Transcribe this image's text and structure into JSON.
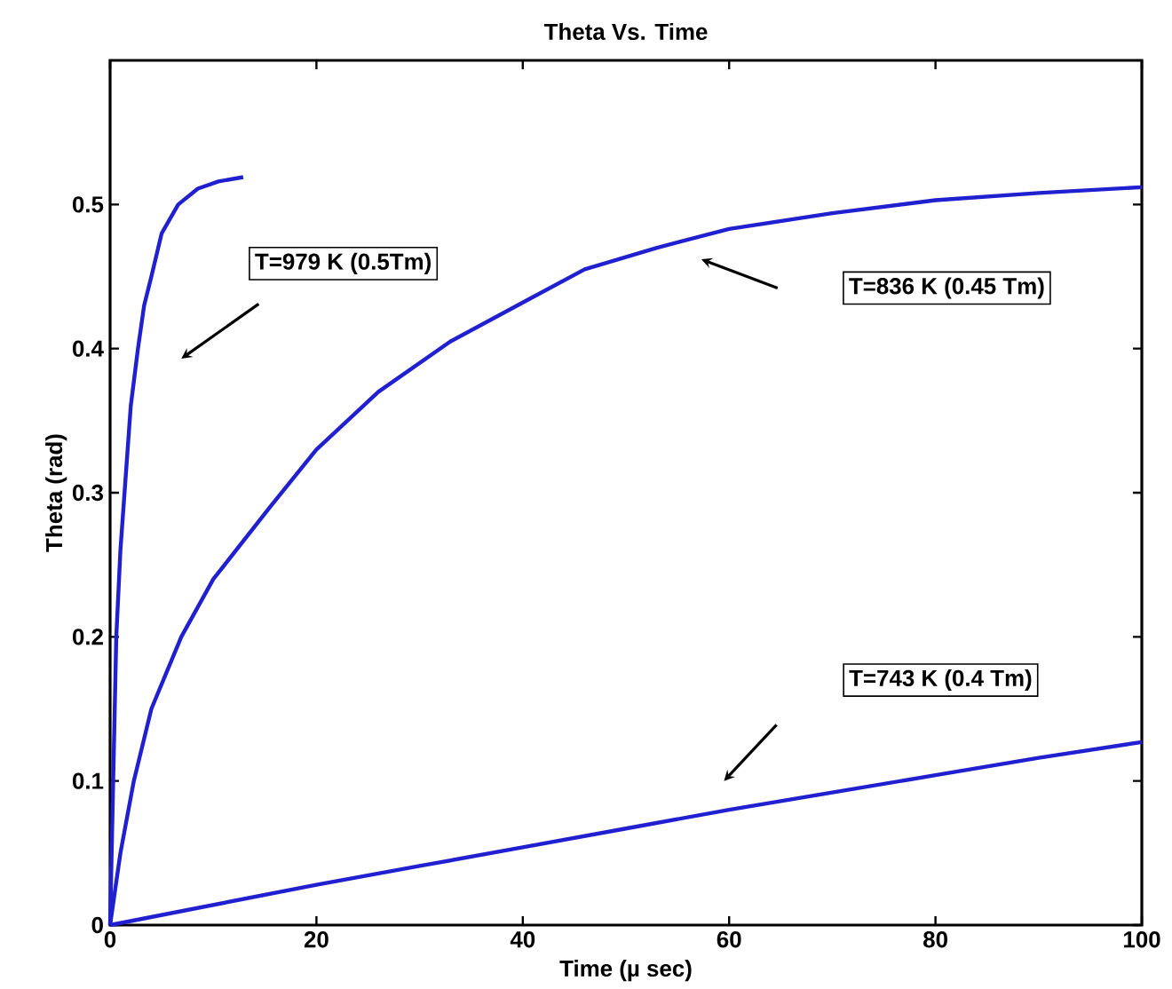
{
  "chart_data": {
    "type": "line",
    "title": "Theta Vs. Time",
    "xlabel": "Time (µ sec)",
    "ylabel": "Theta (rad)",
    "xlim": [
      0,
      100
    ],
    "ylim": [
      0,
      0.6
    ],
    "xticks": [
      0,
      20,
      40,
      60,
      80,
      100
    ],
    "yticks": [
      0,
      0.1,
      0.2,
      0.3,
      0.4,
      0.5
    ],
    "series": [
      {
        "color": "#2020d0",
        "x": [
          0,
          0.3,
          0.6,
          1.0,
          1.4,
          2.0,
          2.7,
          3.3,
          4.0,
          5.0,
          6.6,
          8.5,
          10.5,
          12.9
        ],
        "values": [
          0,
          0.1,
          0.2,
          0.26,
          0.3,
          0.36,
          0.4,
          0.43,
          0.45,
          0.48,
          0.5,
          0.511,
          0.516,
          0.519
        ]
      },
      {
        "color": "#2020d0",
        "x": [
          0,
          1,
          2.3,
          4,
          6.9,
          10,
          15.5,
          20,
          26,
          33,
          40,
          46,
          53,
          60,
          70,
          80,
          90,
          100
        ],
        "values": [
          0,
          0.05,
          0.1,
          0.15,
          0.2,
          0.24,
          0.29,
          0.33,
          0.37,
          0.405,
          0.432,
          0.455,
          0.47,
          0.483,
          0.494,
          0.503,
          0.508,
          0.512
        ]
      },
      {
        "color": "#2020d0",
        "x": [
          0,
          10,
          20,
          30,
          40,
          50,
          60,
          70,
          80,
          90,
          100
        ],
        "values": [
          0,
          0.014,
          0.028,
          0.041,
          0.054,
          0.067,
          0.08,
          0.092,
          0.104,
          0.116,
          0.127
        ]
      }
    ],
    "annotations": [
      "T=979 K (0.5Tm)",
      "T=836 K (0.45 Tm)",
      "T=743 K (0.4 Tm)"
    ]
  }
}
